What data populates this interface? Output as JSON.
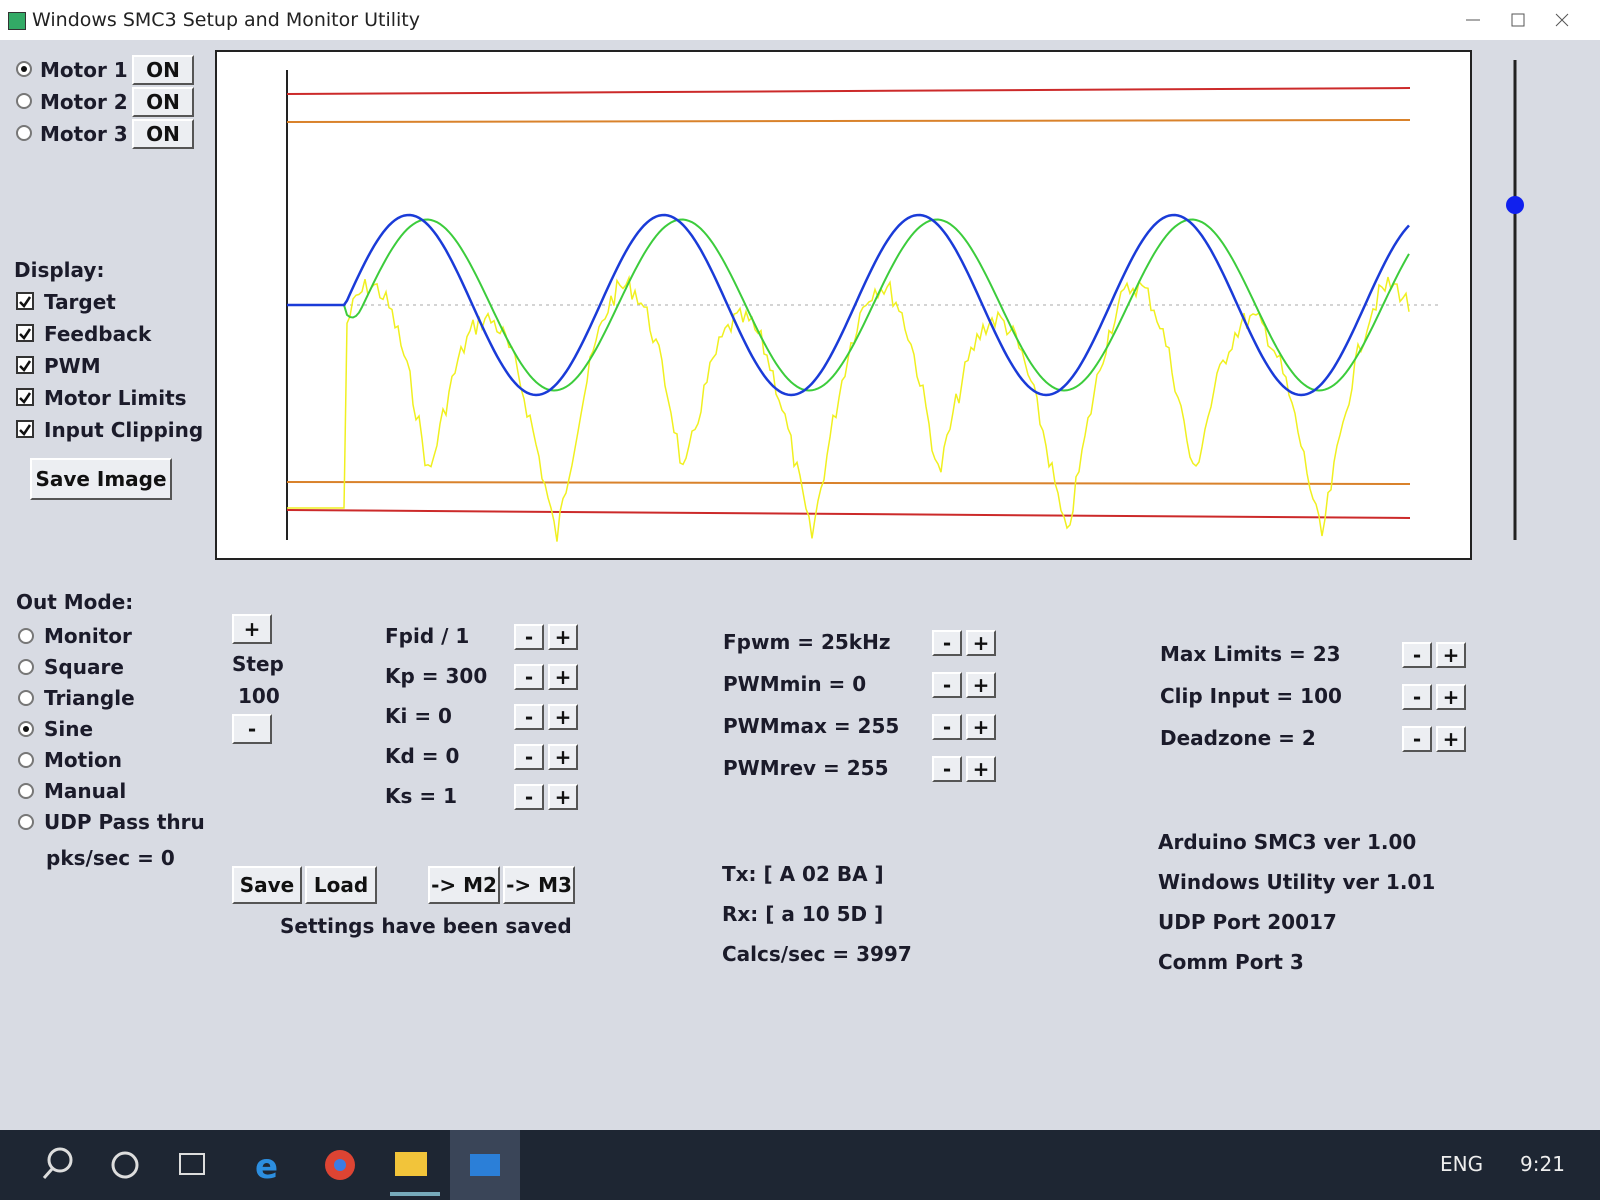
{
  "window": {
    "title": "Windows SMC3 Setup and Monitor Utility"
  },
  "motors": [
    {
      "label": "Motor 1",
      "button": "ON",
      "selected": true
    },
    {
      "label": "Motor 2",
      "button": "ON",
      "selected": false
    },
    {
      "label": "Motor 3",
      "button": "ON",
      "selected": false
    }
  ],
  "display": {
    "label": "Display:",
    "options": [
      {
        "label": "Target",
        "checked": true
      },
      {
        "label": "Feedback",
        "checked": true
      },
      {
        "label": "PWM",
        "checked": true
      },
      {
        "label": "Motor Limits",
        "checked": true
      },
      {
        "label": "Input Clipping",
        "checked": true
      }
    ]
  },
  "save_image": "Save Image",
  "out_mode": {
    "label": "Out Mode:",
    "options": [
      {
        "label": "Monitor",
        "selected": false
      },
      {
        "label": "Square",
        "selected": false
      },
      {
        "label": "Triangle",
        "selected": false
      },
      {
        "label": "Sine",
        "selected": true
      },
      {
        "label": "Motion",
        "selected": false
      },
      {
        "label": "Manual",
        "selected": false
      },
      {
        "label": "UDP Pass thru",
        "selected": false
      }
    ],
    "status": "pks/sec = 0"
  },
  "adjust": {
    "minus": "-",
    "plus": "+"
  },
  "step": {
    "label": "Step",
    "value": "100"
  },
  "pid": [
    "Fpid / 1",
    "Kp = 300",
    "Ki = 0",
    "Kd = 0",
    "Ks = 1"
  ],
  "pwm": [
    "Fpwm = 25kHz",
    "PWMmin = 0",
    "PWMmax = 255",
    "PWMrev = 255"
  ],
  "limits": [
    "Max Limits = 23",
    "Clip Input = 100",
    "Deadzone = 2"
  ],
  "actions": [
    "Save",
    "Load",
    "-> M2",
    "-> M3"
  ],
  "settings_status": "Settings have been saved",
  "comms": [
    "Tx: [ A 02 BA ]",
    "Rx: [ a 10 5D ]",
    "Calcs/sec = 3997"
  ],
  "info": [
    "Arduino SMC3 ver 1.00",
    "Windows Utility ver 1.01",
    "UDP Port 20017",
    "Comm Port 3"
  ],
  "taskbar": {
    "language": "ENG",
    "time": "9:21"
  }
}
